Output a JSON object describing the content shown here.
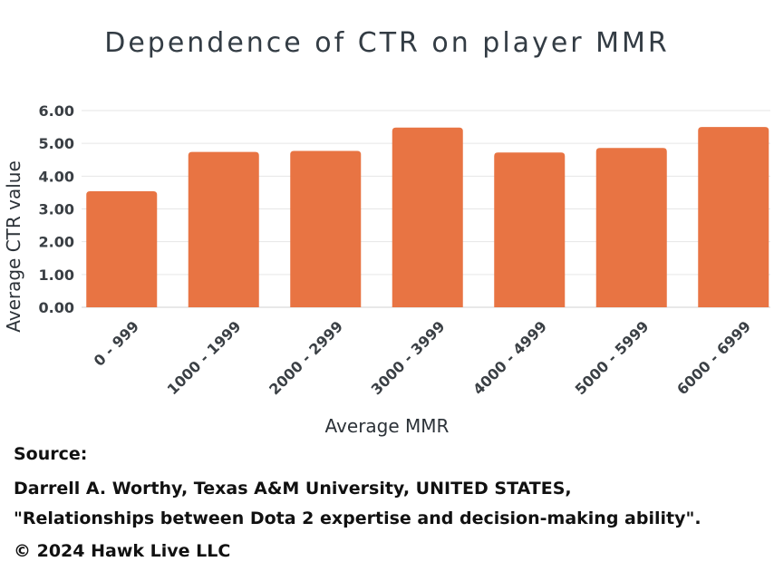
{
  "chart_data": {
    "type": "bar",
    "title": "Dependence of CTR on player MMR",
    "xlabel": "Average MMR",
    "ylabel": "Average CTR value",
    "categories": [
      "0 - 999",
      "1000 - 1999",
      "2000 - 2999",
      "3000 - 3999",
      "4000 - 4999",
      "5000 - 5999",
      "6000 - 6999"
    ],
    "values": [
      3.54,
      4.74,
      4.77,
      5.48,
      4.72,
      4.86,
      5.5
    ],
    "ylim": [
      0,
      6
    ],
    "yticks": [
      "0.00",
      "1.00",
      "2.00",
      "3.00",
      "4.00",
      "5.00",
      "6.00"
    ],
    "grid": true,
    "bar_color": "#e87443"
  },
  "source": {
    "label": "Source:",
    "line1": "Darrell A. Worthy, Texas A&M University, UNITED STATES,",
    "line2": "\"Relationships between Dota 2 expertise and decision-making ability\".",
    "copyright": "© 2024 Hawk Live LLC"
  }
}
